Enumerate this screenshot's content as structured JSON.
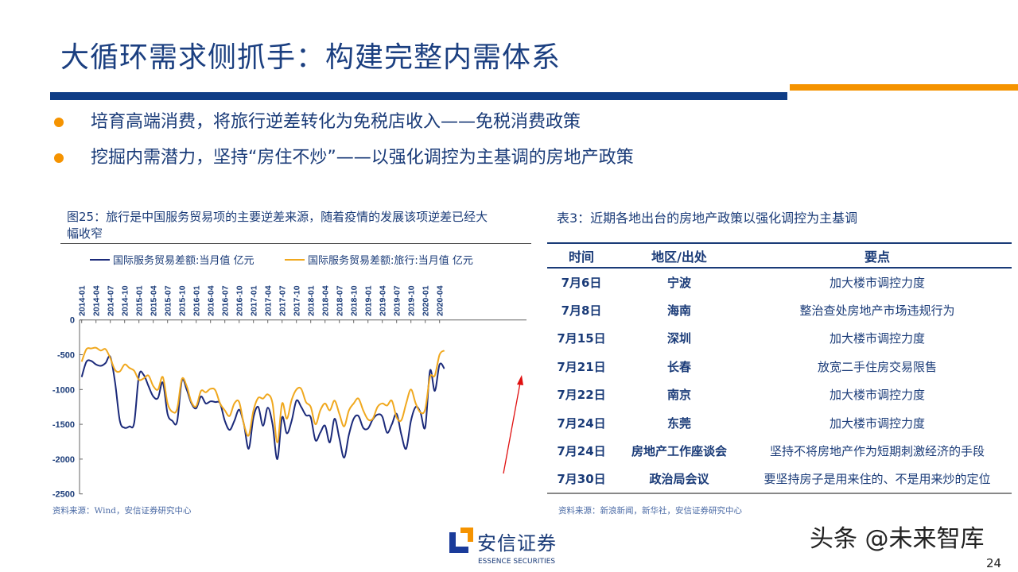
{
  "title": "大循环需求侧抓手：构建完整内需体系",
  "bullets": [
    "培育高端消费，将旅行逆差转化为免税店收入——免税消费政策",
    "挖掘内需潜力，坚持“房住不炒”——以强化调控为主基调的房地产政策"
  ],
  "colors": {
    "navy": "#1b2a7a",
    "orange": "#f0a81e",
    "accent": "#f59300",
    "title": "#1b3f80"
  },
  "figure": {
    "caption": "图25：旅行是中国服务贸易项的主要逆差来源，随着疫情的发展该项逆差已经大幅收窄",
    "source": "资料来源：Wind，安信证券研究中心"
  },
  "chart_data": {
    "type": "line",
    "title": "",
    "xlabel": "",
    "ylabel": "",
    "x_start": "2014-01",
    "x_step": "month",
    "x_ticks": [
      "2014-01",
      "2014-04",
      "2014-07",
      "2014-10",
      "2015-01",
      "2015-04",
      "2015-07",
      "2015-10",
      "2016-01",
      "2016-04",
      "2016-07",
      "2016-10",
      "2017-01",
      "2017-04",
      "2017-07",
      "2017-10",
      "2018-01",
      "2018-04",
      "2018-07",
      "2018-10",
      "2019-01",
      "2019-04",
      "2019-07",
      "2019-10",
      "2020-01",
      "2020-04"
    ],
    "y_ticks": [
      "0",
      "-500",
      "-1000",
      "-1500",
      "-2000",
      "-2500"
    ],
    "ylim": [
      -2500,
      0
    ],
    "legend_position": "top",
    "series": [
      {
        "name": "国际服务贸易差额:当月值 亿元",
        "color": "#1b2a7a",
        "values": [
          -820,
          -600,
          -590,
          -640,
          -660,
          -620,
          -530,
          -900,
          -1450,
          -1550,
          -1530,
          -1480,
          -800,
          -790,
          -950,
          -1100,
          -1120,
          -900,
          -1350,
          -1450,
          -1460,
          -870,
          -1000,
          -1200,
          -1270,
          -1100,
          -1200,
          -1170,
          -1180,
          -1200,
          -1450,
          -1580,
          -1450,
          -1290,
          -1500,
          -1850,
          -1400,
          -1250,
          -1520,
          -1260,
          -1500,
          -2000,
          -1400,
          -1630,
          -1450,
          -1160,
          -1250,
          -1370,
          -1400,
          -1730,
          -1620,
          -1520,
          -1760,
          -1420,
          -1700,
          -1980,
          -1650,
          -1420,
          -1380,
          -1550,
          -1560,
          -1430,
          -1360,
          -1390,
          -1620,
          -1500,
          -1350,
          -1650,
          -1850,
          -1450,
          -1250,
          -1330,
          -1540,
          -730,
          -1020,
          -640,
          -700
        ]
      },
      {
        "name": "国际服务贸易差额:旅行:当月值 亿元",
        "color": "#f0a81e",
        "values": [
          -600,
          -420,
          -410,
          -400,
          -440,
          -420,
          -550,
          -720,
          -740,
          -640,
          -690,
          -730,
          -860,
          -840,
          -800,
          -950,
          -1000,
          -820,
          -1200,
          -1320,
          -1280,
          -850,
          -950,
          -1180,
          -1240,
          -1020,
          -1040,
          -990,
          -1010,
          -1200,
          -1300,
          -1380,
          -1200,
          -1180,
          -1500,
          -1660,
          -1300,
          -1120,
          -1130,
          -1070,
          -1200,
          -1760,
          -1200,
          -1420,
          -1150,
          -1000,
          -990,
          -1180,
          -1250,
          -1500,
          -1300,
          -1200,
          -1300,
          -1160,
          -1350,
          -1530,
          -1300,
          -1200,
          -1130,
          -1300,
          -1430,
          -1420,
          -1250,
          -1200,
          -1230,
          -1160,
          -1400,
          -1440,
          -1200,
          -1000,
          -1200,
          -1330,
          -1280,
          -820,
          -800,
          -500,
          -440
        ]
      }
    ],
    "annotations": [
      "red upward arrow pointing to 2020 recovery"
    ]
  },
  "table": {
    "title": "表3：近期各地出台的房地产政策以强化调控为主基调",
    "headers": [
      "时间",
      "地区/出处",
      "要点"
    ],
    "rows": [
      [
        "7月6日",
        "宁波",
        "加大楼市调控力度"
      ],
      [
        "7月8日",
        "海南",
        "整治查处房地产市场违规行为"
      ],
      [
        "7月15日",
        "深圳",
        "加大楼市调控力度"
      ],
      [
        "7月21日",
        "长春",
        "放宽二手住房交易限售"
      ],
      [
        "7月22日",
        "南京",
        "加大楼市调控力度"
      ],
      [
        "7月24日",
        "东莞",
        "加大楼市调控力度"
      ],
      [
        "7月24日",
        "房地产工作座谈会",
        "坚持不将房地产作为短期刺激经济的手段"
      ],
      [
        "7月30日",
        "政治局会议",
        "要坚持房子是用来住的、不是用来炒的定位"
      ]
    ],
    "source": "资料来源：新浪新闻，新华社，安信证券研究中心"
  },
  "logo": {
    "cn": "安信证券",
    "en": "ESSENCE SECURITIES"
  },
  "watermark": "头条 @未来智库",
  "page_number": "24"
}
